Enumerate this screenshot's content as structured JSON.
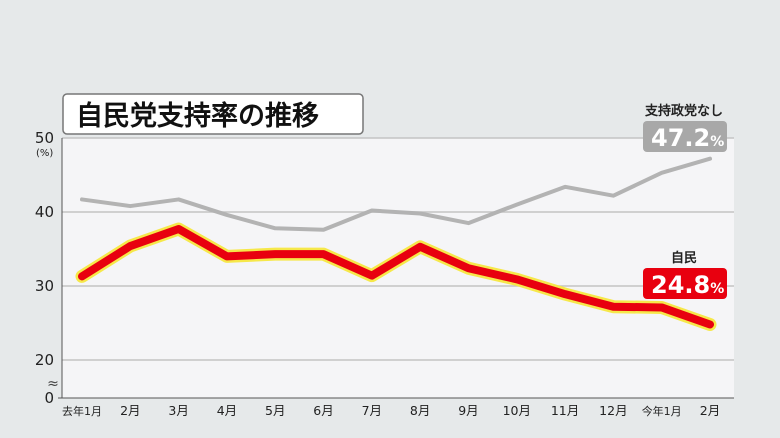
{
  "chart_data": {
    "type": "line",
    "title": "自民党支持率の推移",
    "y_unit": "(%)",
    "ylim": [
      0,
      50
    ],
    "y_ticks": [
      0,
      20,
      30,
      40,
      50
    ],
    "y_axis_break": true,
    "categories": [
      "去年1月",
      "2月",
      "3月",
      "4月",
      "5月",
      "6月",
      "7月",
      "8月",
      "9月",
      "10月",
      "11月",
      "12月",
      "今年1月",
      "2月"
    ],
    "series": [
      {
        "name": "支持政党なし",
        "color": "#b3b3b3",
        "values": [
          41.7,
          40.8,
          41.7,
          39.6,
          37.8,
          37.6,
          40.2,
          39.8,
          38.5,
          41.0,
          43.4,
          42.2,
          45.3,
          47.2
        ],
        "end_label": "47.2",
        "end_label_unit": "%",
        "end_label_bg": "#a8a8a8"
      },
      {
        "name": "自民",
        "color": "#e8000f",
        "glow": "#f6e84a",
        "values": [
          31.3,
          35.4,
          37.7,
          34.0,
          34.3,
          34.3,
          31.4,
          35.3,
          32.4,
          30.9,
          28.9,
          27.2,
          27.1,
          24.8
        ],
        "end_label": "24.8",
        "end_label_unit": "%",
        "end_label_bg": "#e8000f"
      }
    ],
    "grid": true,
    "legend": "end-labels"
  }
}
